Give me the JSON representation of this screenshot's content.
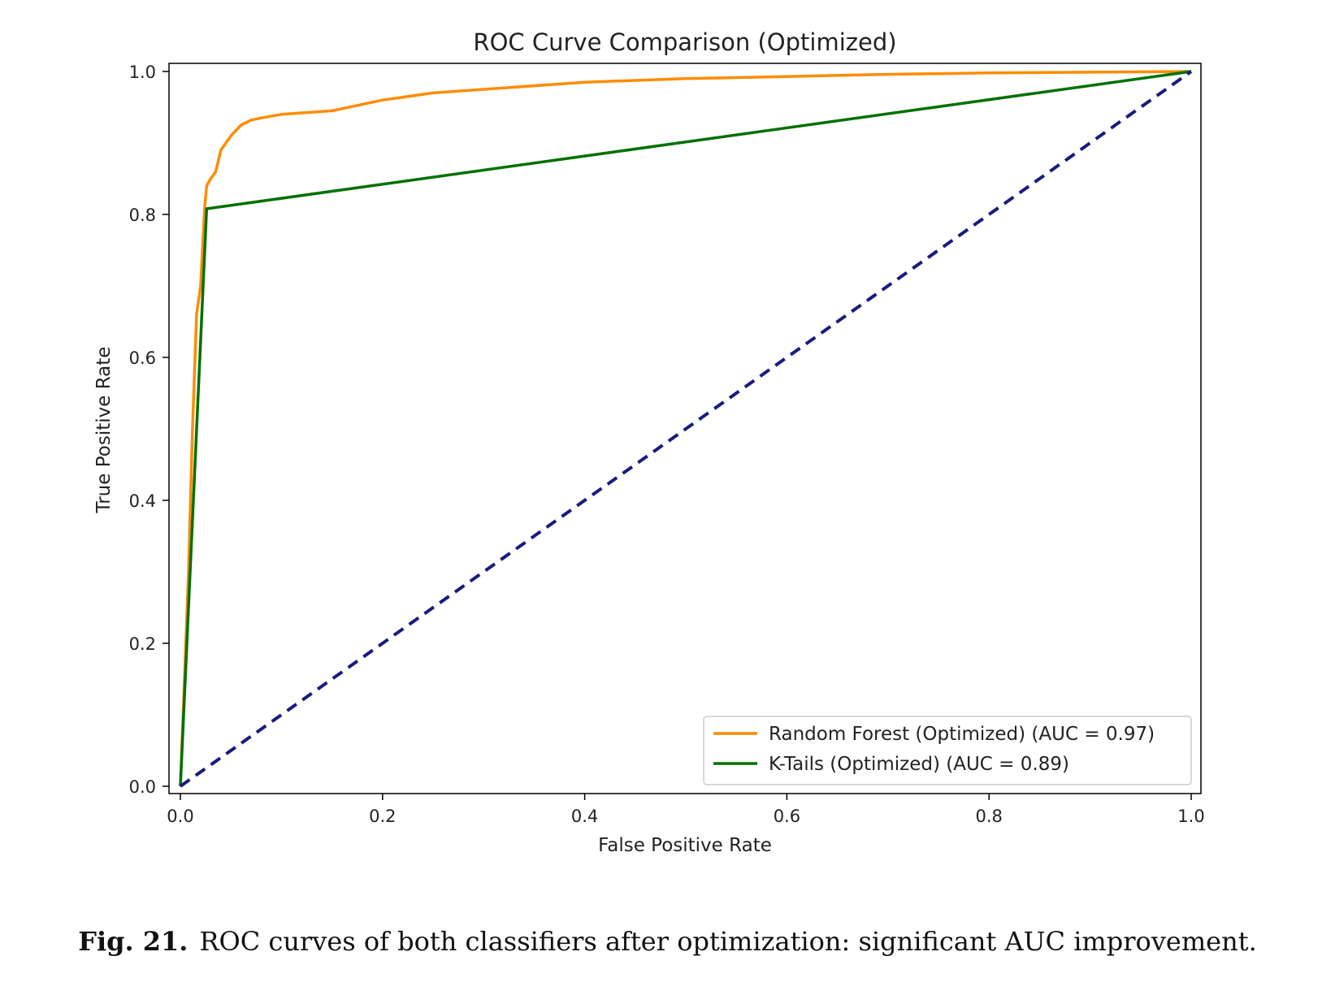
{
  "chart_data": {
    "type": "line",
    "title": "ROC Curve Comparison (Optimized)",
    "xlabel": "False Positive Rate",
    "ylabel": "True Positive Rate",
    "xlim": [
      0.0,
      1.0
    ],
    "ylim": [
      0.0,
      1.0
    ],
    "xticks": [
      "0.0",
      "0.2",
      "0.4",
      "0.6",
      "0.8",
      "1.0"
    ],
    "yticks": [
      "0.0",
      "0.2",
      "0.4",
      "0.6",
      "0.8",
      "1.0"
    ],
    "grid": false,
    "legend_position": "lower-right",
    "series": [
      {
        "name": "Random Forest (Optimized) (AUC = 0.97)",
        "color": "#ff8c00",
        "style": "solid",
        "x": [
          0.0,
          0.008,
          0.012,
          0.016,
          0.02,
          0.024,
          0.026,
          0.03,
          0.035,
          0.04,
          0.05,
          0.06,
          0.07,
          0.08,
          0.1,
          0.15,
          0.2,
          0.25,
          0.3,
          0.4,
          0.5,
          0.6,
          0.7,
          0.8,
          0.9,
          1.0
        ],
        "y": [
          0.0,
          0.3,
          0.5,
          0.66,
          0.7,
          0.81,
          0.84,
          0.85,
          0.86,
          0.89,
          0.91,
          0.925,
          0.932,
          0.935,
          0.94,
          0.945,
          0.96,
          0.97,
          0.975,
          0.985,
          0.99,
          0.993,
          0.996,
          0.998,
          0.999,
          1.0
        ]
      },
      {
        "name": "K-Tails (Optimized) (AUC = 0.89)",
        "color": "#007000",
        "style": "solid",
        "x": [
          0.0,
          0.026,
          1.0
        ],
        "y": [
          0.0,
          0.808,
          1.0
        ]
      },
      {
        "name": "Chance",
        "color": "#1a1a80",
        "style": "dashed",
        "show_in_legend": false,
        "x": [
          0.0,
          1.0
        ],
        "y": [
          0.0,
          1.0
        ]
      }
    ]
  },
  "caption": {
    "label": "Fig. 21.",
    "text": "ROC curves of both classifiers after optimization: significant AUC improvement."
  }
}
